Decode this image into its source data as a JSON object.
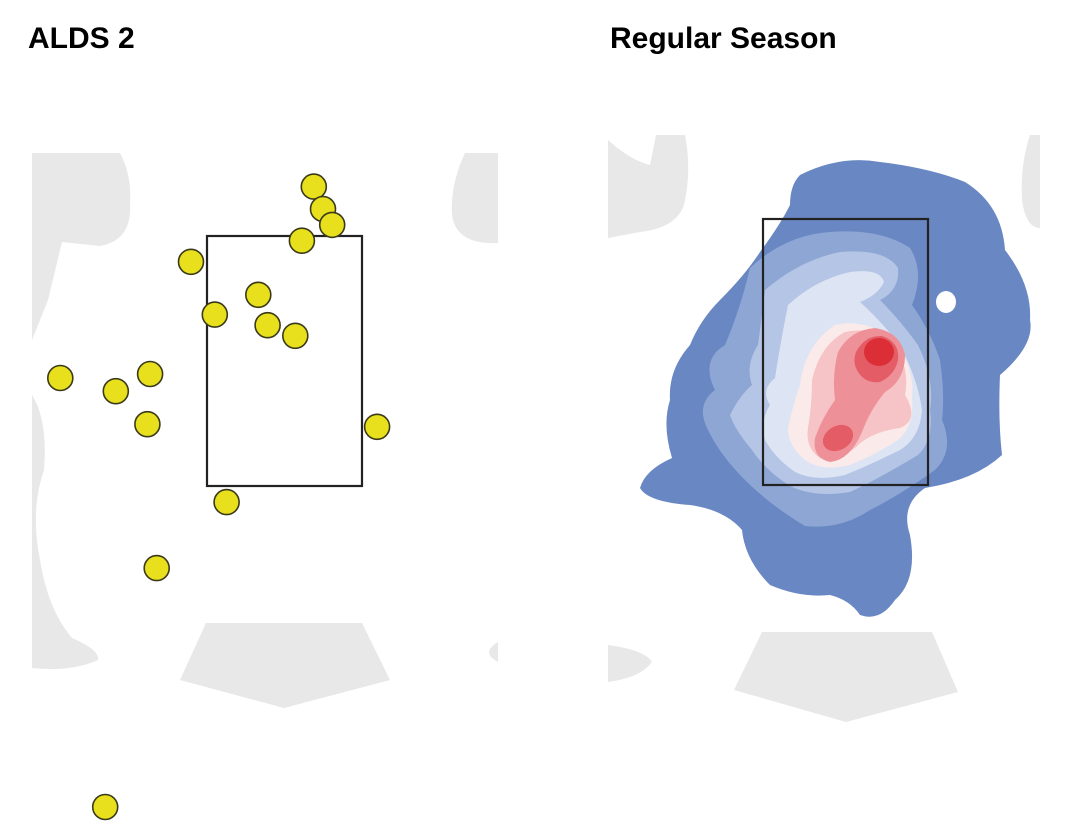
{
  "chart_data": [
    {
      "type": "scatter",
      "title": "ALDS 2",
      "marker_color": "#e8e01c",
      "marker_edge": "#3a3a1a",
      "strike_zone": true,
      "points": [
        {
          "x": 0.18,
          "y": 3.95
        },
        {
          "x": 0.25,
          "y": 3.78
        },
        {
          "x": 0.32,
          "y": 3.66
        },
        {
          "x": 0.09,
          "y": 3.54
        },
        {
          "x": -0.75,
          "y": 3.38
        },
        {
          "x": -0.24,
          "y": 3.13
        },
        {
          "x": -0.57,
          "y": 2.98
        },
        {
          "x": -0.17,
          "y": 2.9
        },
        {
          "x": 0.04,
          "y": 2.82
        },
        {
          "x": -1.74,
          "y": 2.5
        },
        {
          "x": -1.06,
          "y": 2.53
        },
        {
          "x": -1.32,
          "y": 2.4
        },
        {
          "x": -1.08,
          "y": 2.15
        },
        {
          "x": 0.66,
          "y": 2.13
        },
        {
          "x": -0.48,
          "y": 1.56
        },
        {
          "x": -1.01,
          "y": 1.06
        },
        {
          "x": -1.4,
          "y": -0.75
        }
      ]
    },
    {
      "type": "heatmap",
      "title": "Regular Season",
      "strike_zone": true,
      "colors": [
        "#6987c3",
        "#8ea6d4",
        "#b5c5e5",
        "#dde4f3",
        "#fbeaea",
        "#f6c3c6",
        "#ee9097",
        "#e45d66",
        "#dc2e36"
      ]
    }
  ]
}
